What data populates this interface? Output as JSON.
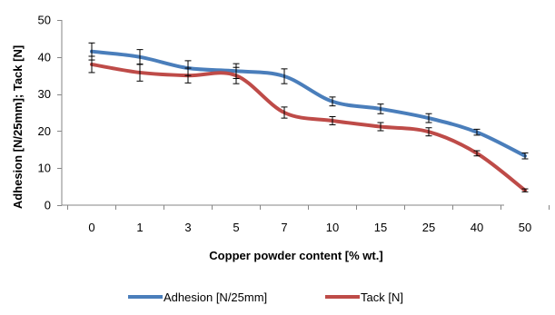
{
  "chart_data": {
    "type": "line",
    "smooth": true,
    "categories": [
      "0",
      "1",
      "3",
      "5",
      "7",
      "10",
      "15",
      "25",
      "40",
      "50"
    ],
    "xlabel": "Copper powder content [% wt.]",
    "ylabel": "Adhesion [N/25mm]; Tack [N]",
    "ylim": [
      0,
      50
    ],
    "yticks": [
      0,
      10,
      20,
      30,
      40,
      50
    ],
    "grid": false,
    "legend": "bottom",
    "series": [
      {
        "name": "Adhesion [N/25mm]",
        "color": "#4a7ebb",
        "values": [
          41.5,
          40,
          37,
          36.2,
          34.8,
          28,
          26,
          23.5,
          19.7,
          13.3
        ],
        "errors": [
          2.3,
          2.0,
          2.0,
          2.0,
          2.0,
          1.2,
          1.3,
          1.2,
          0.8,
          0.8
        ]
      },
      {
        "name": "Tack [N]",
        "color": "#be4b48",
        "values": [
          38,
          35.8,
          35,
          35,
          25,
          22.8,
          21.2,
          19.8,
          14,
          4
        ],
        "errors": [
          2.2,
          2.3,
          2.0,
          2.2,
          1.5,
          1.1,
          1.1,
          1.1,
          0.7,
          0.4
        ]
      }
    ]
  }
}
